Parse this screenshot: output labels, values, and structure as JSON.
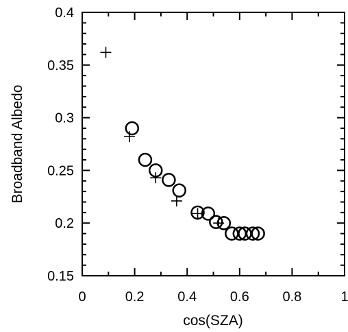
{
  "chart_data": {
    "type": "scatter",
    "xlabel": "cos(SZA)",
    "ylabel": "Broadband Albedo",
    "xlim": [
      0,
      1
    ],
    "ylim": [
      0.15,
      0.4
    ],
    "x_ticks": [
      "0",
      "0.2",
      "0.4",
      "0.6",
      "0.8",
      "1"
    ],
    "y_ticks": [
      "0.15",
      "0.2",
      "0.25",
      "0.3",
      "0.35",
      "0.4"
    ],
    "grid": false,
    "legend": "none",
    "series": [
      {
        "marker": "plus",
        "points": [
          {
            "x": 0.09,
            "y": 0.362
          },
          {
            "x": 0.18,
            "y": 0.282
          },
          {
            "x": 0.28,
            "y": 0.243
          },
          {
            "x": 0.36,
            "y": 0.221
          },
          {
            "x": 0.44,
            "y": 0.209
          },
          {
            "x": 0.52,
            "y": 0.2
          }
        ]
      },
      {
        "marker": "circle",
        "points": [
          {
            "x": 0.19,
            "y": 0.29
          },
          {
            "x": 0.24,
            "y": 0.26
          },
          {
            "x": 0.28,
            "y": 0.25
          },
          {
            "x": 0.33,
            "y": 0.241
          },
          {
            "x": 0.37,
            "y": 0.231
          },
          {
            "x": 0.44,
            "y": 0.21
          },
          {
            "x": 0.48,
            "y": 0.209
          },
          {
            "x": 0.51,
            "y": 0.201
          },
          {
            "x": 0.54,
            "y": 0.2
          },
          {
            "x": 0.57,
            "y": 0.19
          },
          {
            "x": 0.6,
            "y": 0.19
          },
          {
            "x": 0.62,
            "y": 0.19
          },
          {
            "x": 0.65,
            "y": 0.19
          },
          {
            "x": 0.67,
            "y": 0.19
          }
        ]
      }
    ]
  }
}
